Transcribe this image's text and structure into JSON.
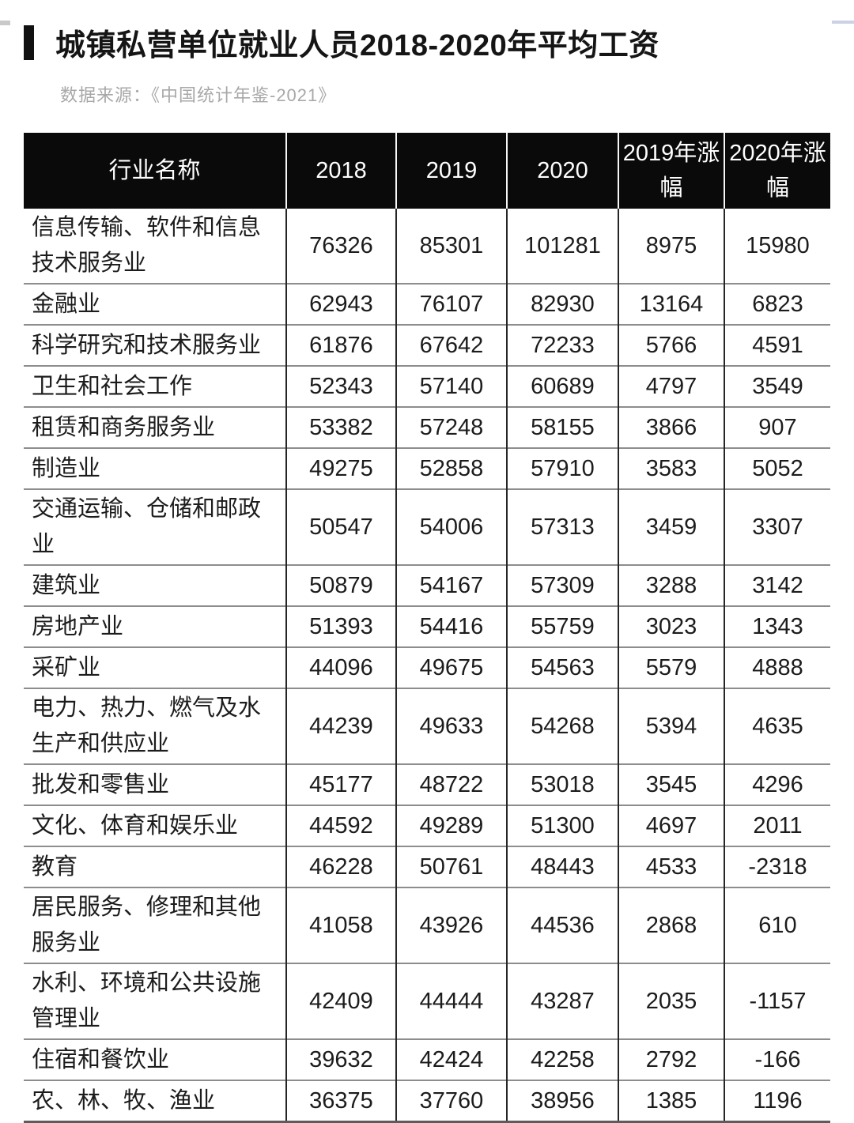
{
  "header": {
    "title": "城镇私营单位就业人员2018-2020年平均工资",
    "source_label": "数据来源：《中国统计年鉴-2021》"
  },
  "table": {
    "columns": [
      "行业名称",
      "2018",
      "2019",
      "2020",
      "2019年涨幅",
      "2020年涨幅"
    ],
    "rows": [
      [
        "信息传输、软件和信息技术服务业",
        "76326",
        "85301",
        "101281",
        "8975",
        "15980"
      ],
      [
        "金融业",
        "62943",
        "76107",
        "82930",
        "13164",
        "6823"
      ],
      [
        "科学研究和技术服务业",
        "61876",
        "67642",
        "72233",
        "5766",
        "4591"
      ],
      [
        "卫生和社会工作",
        "52343",
        "57140",
        "60689",
        "4797",
        "3549"
      ],
      [
        "租赁和商务服务业",
        "53382",
        "57248",
        "58155",
        "3866",
        "907"
      ],
      [
        "制造业",
        "49275",
        "52858",
        "57910",
        "3583",
        "5052"
      ],
      [
        "交通运输、仓储和邮政业",
        "50547",
        "54006",
        "57313",
        "3459",
        "3307"
      ],
      [
        "建筑业",
        "50879",
        "54167",
        "57309",
        "3288",
        "3142"
      ],
      [
        "房地产业",
        "51393",
        "54416",
        "55759",
        "3023",
        "1343"
      ],
      [
        "采矿业",
        "44096",
        "49675",
        "54563",
        "5579",
        "4888"
      ],
      [
        "电力、热力、燃气及水生产和供应业",
        "44239",
        "49633",
        "54268",
        "5394",
        "4635"
      ],
      [
        "批发和零售业",
        "45177",
        "48722",
        "53018",
        "3545",
        "4296"
      ],
      [
        "文化、体育和娱乐业",
        "44592",
        "49289",
        "51300",
        "4697",
        "2011"
      ],
      [
        "教育",
        "46228",
        "50761",
        "48443",
        "4533",
        "-2318"
      ],
      [
        "居民服务、修理和其他服务业",
        "41058",
        "43926",
        "44536",
        "2868",
        "610"
      ],
      [
        "水利、环境和公共设施管理业",
        "42409",
        "44444",
        "43287",
        "2035",
        "-1157"
      ],
      [
        "住宿和餐饮业",
        "39632",
        "42424",
        "42258",
        "2792",
        "-166"
      ],
      [
        "农、林、牧、渔业",
        "36375",
        "37760",
        "38956",
        "1385",
        "1196"
      ]
    ]
  },
  "colors": {
    "header_background": "#0a0a0a",
    "header_text": "#ffffff",
    "row_separator": "#8d8d8d",
    "column_line": "#262626",
    "title_marker": "#111111",
    "source_text": "#a8a8a8"
  }
}
